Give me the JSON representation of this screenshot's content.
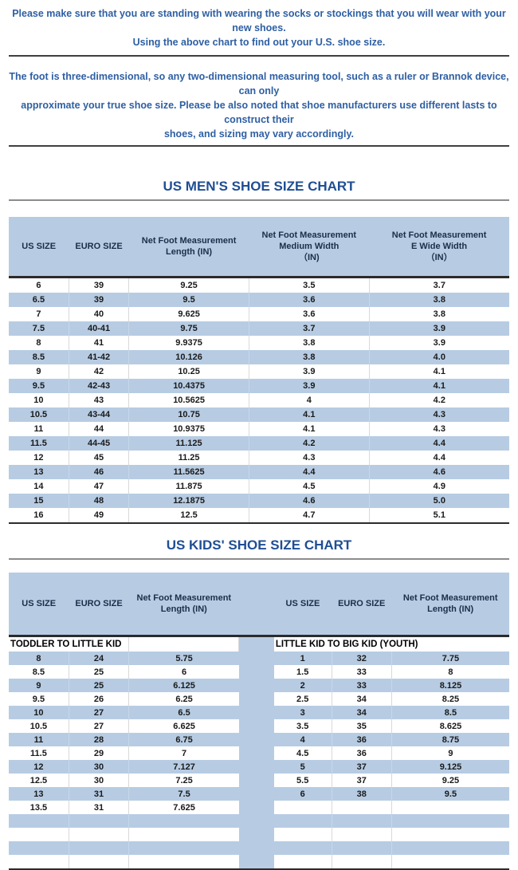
{
  "notices": {
    "notice1": "Please make sure that you are standing with wearing the socks or stockings that you will wear with your new shoes.\nUsing the above chart to find out your U.S. shoe size.",
    "notice2": "The foot is three-dimensional, so any two-dimensional measuring tool, such as a ruler or Brannok device, can only\napproximate your true shoe size. Please be also noted that shoe manufacturers use different lasts to construct their\nshoes, and sizing may vary accordingly."
  },
  "mens_chart": {
    "title": "US MEN'S SHOE SIZE CHART",
    "columns": [
      "US SIZE",
      "EURO SIZE",
      "Net Foot Measurement\nLength (IN)",
      "Net Foot Measurement\nMedium Width\n（IN)",
      "Net Foot Measurement\nE Wide Width\n（IN）"
    ],
    "rows": [
      [
        "6",
        "39",
        "9.25",
        "3.5",
        "3.7"
      ],
      [
        "6.5",
        "39",
        "9.5",
        "3.6",
        "3.8"
      ],
      [
        "7",
        "40",
        "9.625",
        "3.6",
        "3.8"
      ],
      [
        "7.5",
        "40-41",
        "9.75",
        "3.7",
        "3.9"
      ],
      [
        "8",
        "41",
        "9.9375",
        "3.8",
        "3.9"
      ],
      [
        "8.5",
        "41-42",
        "10.126",
        "3.8",
        "4.0"
      ],
      [
        "9",
        "42",
        "10.25",
        "3.9",
        "4.1"
      ],
      [
        "9.5",
        "42-43",
        "10.4375",
        "3.9",
        "4.1"
      ],
      [
        "10",
        "43",
        "10.5625",
        "4",
        "4.2"
      ],
      [
        "10.5",
        "43-44",
        "10.75",
        "4.1",
        "4.3"
      ],
      [
        "11",
        "44",
        "10.9375",
        "4.1",
        "4.3"
      ],
      [
        "11.5",
        "44-45",
        "11.125",
        "4.2",
        "4.4"
      ],
      [
        "12",
        "45",
        "11.25",
        "4.3",
        "4.4"
      ],
      [
        "13",
        "46",
        "11.5625",
        "4.4",
        "4.6"
      ],
      [
        "14",
        "47",
        "11.875",
        "4.5",
        "4.9"
      ],
      [
        "15",
        "48",
        "12.1875",
        "4.6",
        "5.0"
      ],
      [
        "16",
        "49",
        "12.5",
        "4.7",
        "5.1"
      ]
    ]
  },
  "kids_chart": {
    "title": "US KIDS' SHOE SIZE CHART",
    "columns": [
      "US SIZE",
      "EURO SIZE",
      "Net Foot Measurement\nLength (IN)"
    ],
    "left_section": "TODDLER TO LITTLE KID",
    "right_section": "LITTLE KID TO BIG KID (YOUTH)",
    "left_rows": [
      [
        "8",
        "24",
        "5.75"
      ],
      [
        "8.5",
        "25",
        "6"
      ],
      [
        "9",
        "25",
        "6.125"
      ],
      [
        "9.5",
        "26",
        "6.25"
      ],
      [
        "10",
        "27",
        "6.5"
      ],
      [
        "10.5",
        "27",
        "6.625"
      ],
      [
        "11",
        "28",
        "6.75"
      ],
      [
        "11.5",
        "29",
        "7"
      ],
      [
        "12",
        "30",
        "7.127"
      ],
      [
        "12.5",
        "30",
        "7.25"
      ],
      [
        "13",
        "31",
        "7.5"
      ],
      [
        "13.5",
        "31",
        "7.625"
      ]
    ],
    "right_rows": [
      [
        "1",
        "32",
        "7.75"
      ],
      [
        "1.5",
        "33",
        "8"
      ],
      [
        "2",
        "33",
        "8.125"
      ],
      [
        "2.5",
        "34",
        "8.25"
      ],
      [
        "3",
        "34",
        "8.5"
      ],
      [
        "3.5",
        "35",
        "8.625"
      ],
      [
        "4",
        "36",
        "8.75"
      ],
      [
        "4.5",
        "36",
        "9"
      ],
      [
        "5",
        "37",
        "9.125"
      ],
      [
        "5.5",
        "37",
        "9.25"
      ],
      [
        "6",
        "38",
        "9.5"
      ]
    ],
    "body_row_count": 16
  },
  "colors": {
    "table_fill_blue": "#b7cce3",
    "notice_text_blue": "#2e5fa3",
    "heading_text_blue": "#1f4e94",
    "heavy_border": "#2b2b2b",
    "gray_rule": "#8c8c8c"
  }
}
